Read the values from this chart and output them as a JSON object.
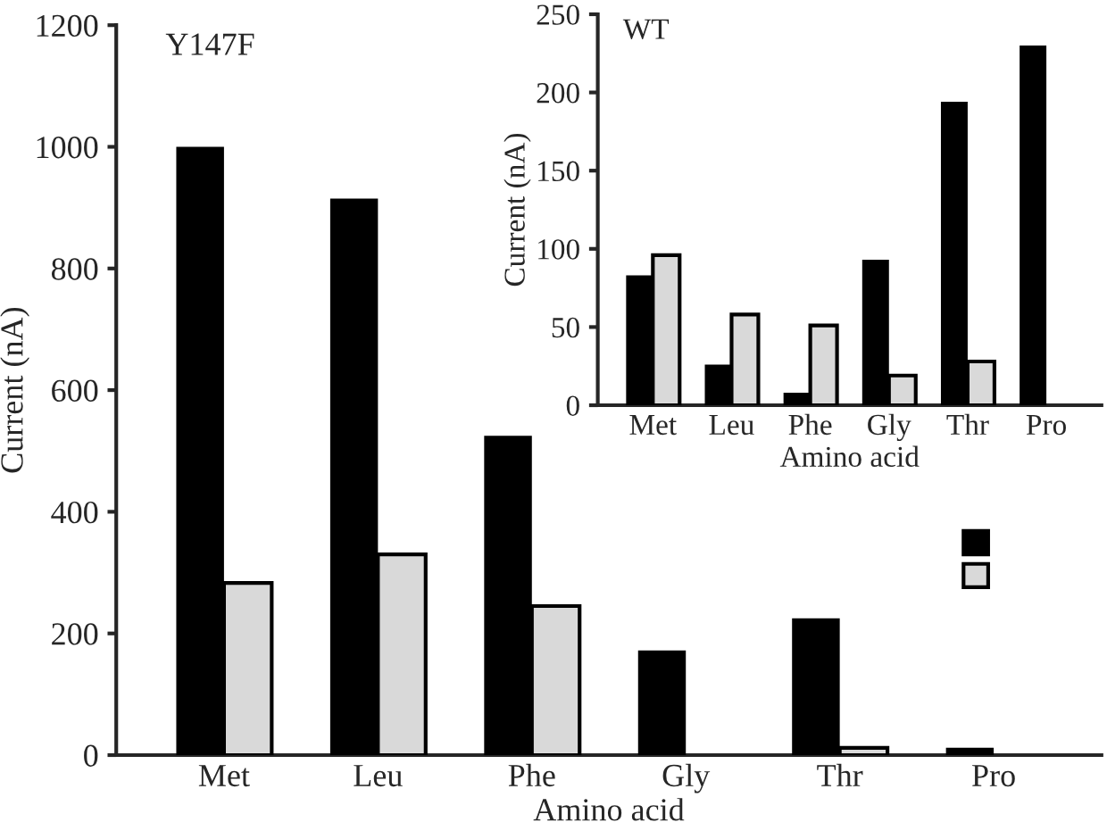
{
  "chart_data": [
    {
      "type": "bar",
      "title": "Y147F",
      "xlabel": "Amino acid",
      "ylabel": "Current (nA)",
      "categories": [
        "Met",
        "Leu",
        "Phe",
        "Gly",
        "Thr",
        "Pro"
      ],
      "series": [
        {
          "color": "#000000",
          "values": [
            1000,
            915,
            525,
            172,
            225,
            12
          ]
        },
        {
          "color": "#d9d9d9",
          "values": [
            283,
            330,
            245,
            null,
            12,
            null
          ]
        }
      ],
      "ylim": [
        0,
        1200
      ],
      "yticks": [
        0,
        200,
        400,
        600,
        800,
        1000,
        1200
      ],
      "grid": false
    },
    {
      "type": "bar",
      "title": "WT",
      "xlabel": "Amino acid",
      "ylabel": "Current (nA)",
      "categories": [
        "Met",
        "Leu",
        "Phe",
        "Gly",
        "Thr",
        "Pro"
      ],
      "series": [
        {
          "color": "#000000",
          "values": [
            83,
            26,
            8,
            93,
            194,
            230
          ]
        },
        {
          "color": "#d9d9d9",
          "values": [
            96,
            58,
            51,
            19,
            28,
            null
          ]
        }
      ],
      "ylim": [
        0,
        250
      ],
      "yticks": [
        0,
        50,
        100,
        150,
        200,
        250
      ],
      "grid": false
    }
  ]
}
